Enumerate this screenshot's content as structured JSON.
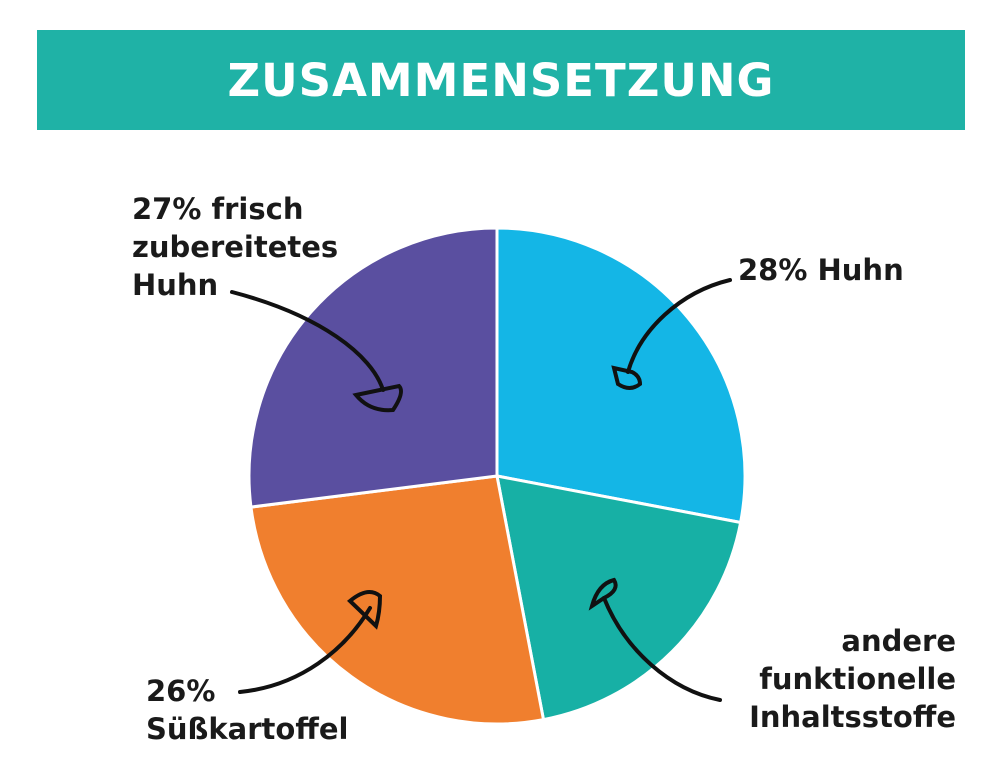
{
  "header": {
    "title": "ZUSAMMENSETZUNG",
    "color": "#1fb2a6"
  },
  "chart_data": {
    "type": "pie",
    "title": "ZUSAMMENSETZUNG",
    "slices": [
      {
        "label_lines": [
          "27% frisch",
          "zubereitetes",
          "Huhn"
        ],
        "value": 27,
        "color": "#5a4fa0"
      },
      {
        "label_lines": [
          "28% Huhn"
        ],
        "value": 28,
        "color": "#14b6e6"
      },
      {
        "label_lines": [
          "andere",
          "funktionelle",
          "Inhaltsstoffe"
        ],
        "value": 19,
        "color": "#17b0a5"
      },
      {
        "label_lines": [
          "26%",
          "Süßkartoffel"
        ],
        "value": 26,
        "color": "#f07f2e"
      }
    ],
    "start_angle_deg": 0,
    "order": [
      "27% frisch zubereitetes Huhn",
      "28% Huhn",
      "andere funktionelle Inhaltsstoffe",
      "26% Süßkartoffel"
    ]
  }
}
